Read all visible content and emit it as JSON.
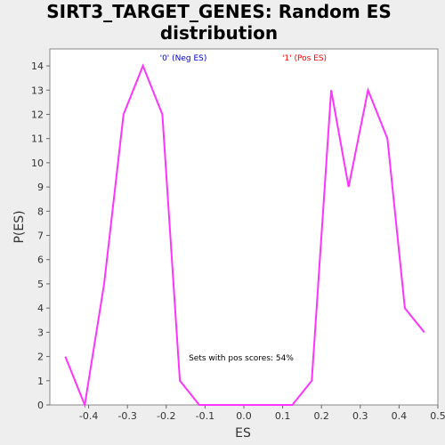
{
  "chart_data": {
    "type": "line",
    "title_line1": "SIRT3_TARGET_GENES: Random ES",
    "title_line2": "distribution",
    "xlabel": "ES",
    "ylabel": "P(ES)",
    "xlim": [
      -0.5,
      0.5
    ],
    "ylim": [
      0,
      14.7
    ],
    "xticks": [
      -0.4,
      -0.3,
      -0.2,
      -0.1,
      0.0,
      0.1,
      0.2,
      0.3,
      0.4,
      0.5
    ],
    "xtick_labels": [
      "-0.4",
      "-0.3",
      "-0.2",
      "-0.1",
      "0.0",
      "0.1",
      "0.2",
      "0.3",
      "0.4",
      "0.5"
    ],
    "yticks": [
      0,
      1,
      2,
      3,
      4,
      5,
      6,
      7,
      8,
      9,
      10,
      11,
      12,
      13,
      14
    ],
    "ytick_labels": [
      "0",
      "1",
      "2",
      "3",
      "4",
      "5",
      "6",
      "7",
      "8",
      "9",
      "10",
      "11",
      "12",
      "13",
      "14"
    ],
    "series": [
      {
        "color": "#ff33ff",
        "x": [
          -0.46,
          -0.41,
          -0.36,
          -0.31,
          -0.26,
          -0.21,
          -0.165,
          -0.115,
          -0.065,
          -0.015,
          0.035,
          0.085,
          0.125,
          0.175,
          0.225,
          0.27,
          0.32,
          0.37,
          0.415,
          0.465
        ],
        "y": [
          2,
          0,
          5,
          12,
          14,
          12,
          1,
          0,
          0,
          0,
          0,
          0,
          0,
          1,
          13,
          9,
          13,
          11,
          4,
          3
        ]
      }
    ],
    "grid": false,
    "annotations": {
      "neg_label": "'0' (Neg ES)",
      "pos_label": "'1' (Pos ES)",
      "neg_color": "#0000cc",
      "pos_color": "#ff0000",
      "pos_scores_text": "Sets with pos scores: 54%"
    }
  }
}
